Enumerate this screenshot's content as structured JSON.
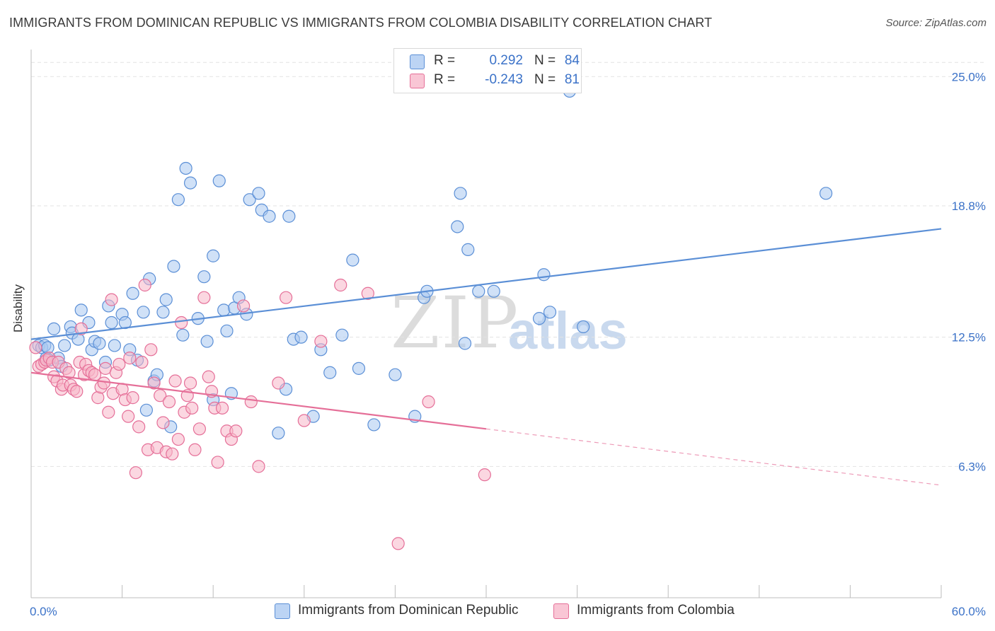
{
  "title": "IMMIGRANTS FROM DOMINICAN REPUBLIC VS IMMIGRANTS FROM COLOMBIA DISABILITY CORRELATION CHART",
  "source": "Source: ZipAtlas.com",
  "watermark": {
    "zip": "ZIP",
    "atlas": "atlas"
  },
  "legend": {
    "rows": [
      {
        "r_label": "R =",
        "r_value": "0.292",
        "n_label": "N =",
        "n_value": "84",
        "color": "#a9c8f0"
      },
      {
        "r_label": "R =",
        "r_value": "-0.243",
        "n_label": "N =",
        "n_value": "81",
        "color": "#f7b6c9"
      }
    ]
  },
  "bottom_legend": [
    {
      "label": "Immigrants from Dominican Republic",
      "color": "#a9c8f0"
    },
    {
      "label": "Immigrants from Colombia",
      "color": "#f7b6c9"
    }
  ],
  "chart_data": {
    "type": "scatter",
    "title": "IMMIGRANTS FROM DOMINICAN REPUBLIC VS IMMIGRANTS FROM COLOMBIA DISABILITY CORRELATION CHART",
    "xlabel": "",
    "ylabel": "Disability",
    "xlim": [
      0,
      60
    ],
    "ylim": [
      0,
      26.3
    ],
    "x_tick_labels": [
      "0.0%",
      "60.0%"
    ],
    "y_ticks": [
      6.3,
      12.5,
      18.8,
      25.0
    ],
    "y_tick_labels": [
      "6.3%",
      "12.5%",
      "18.8%",
      "25.0%"
    ],
    "grid": true,
    "series": [
      {
        "name": "Immigrants from Dominican Republic",
        "color": "#5b8fd6",
        "fill": "#a9c8f0",
        "trend": {
          "x": [
            0,
            60
          ],
          "y": [
            12.4,
            17.7
          ],
          "dashed_from": null
        },
        "points": [
          [
            0.5,
            12.1
          ],
          [
            0.7,
            12.0
          ],
          [
            0.9,
            12.1
          ],
          [
            1.0,
            11.5
          ],
          [
            1.1,
            12.0
          ],
          [
            1.2,
            11.4
          ],
          [
            1.5,
            12.9
          ],
          [
            1.8,
            11.5
          ],
          [
            2.0,
            11.1
          ],
          [
            2.2,
            12.1
          ],
          [
            2.6,
            13.0
          ],
          [
            2.7,
            12.7
          ],
          [
            3.1,
            12.4
          ],
          [
            3.3,
            13.8
          ],
          [
            3.8,
            13.2
          ],
          [
            4.0,
            11.9
          ],
          [
            4.2,
            12.3
          ],
          [
            4.5,
            12.2
          ],
          [
            4.9,
            11.3
          ],
          [
            5.1,
            14.0
          ],
          [
            5.3,
            13.2
          ],
          [
            5.5,
            12.1
          ],
          [
            6.0,
            13.6
          ],
          [
            6.2,
            13.2
          ],
          [
            6.5,
            11.9
          ],
          [
            6.7,
            14.6
          ],
          [
            7.0,
            11.4
          ],
          [
            7.4,
            13.7
          ],
          [
            7.6,
            9.0
          ],
          [
            7.8,
            15.3
          ],
          [
            8.1,
            10.4
          ],
          [
            8.3,
            10.7
          ],
          [
            8.7,
            13.7
          ],
          [
            8.9,
            14.3
          ],
          [
            9.2,
            8.2
          ],
          [
            9.4,
            15.9
          ],
          [
            9.7,
            19.1
          ],
          [
            10.0,
            12.6
          ],
          [
            10.2,
            20.6
          ],
          [
            10.5,
            19.9
          ],
          [
            11.0,
            13.4
          ],
          [
            11.4,
            15.4
          ],
          [
            11.6,
            12.3
          ],
          [
            12.0,
            16.4
          ],
          [
            12.0,
            9.5
          ],
          [
            12.4,
            20.0
          ],
          [
            12.7,
            13.8
          ],
          [
            12.9,
            12.8
          ],
          [
            13.2,
            9.8
          ],
          [
            13.4,
            13.9
          ],
          [
            13.7,
            14.4
          ],
          [
            14.2,
            13.6
          ],
          [
            14.4,
            19.1
          ],
          [
            15.0,
            19.4
          ],
          [
            15.2,
            18.6
          ],
          [
            15.7,
            18.3
          ],
          [
            16.3,
            7.9
          ],
          [
            16.8,
            10.0
          ],
          [
            17.0,
            18.3
          ],
          [
            17.3,
            12.4
          ],
          [
            17.8,
            12.5
          ],
          [
            18.6,
            8.7
          ],
          [
            19.1,
            11.9
          ],
          [
            19.7,
            10.8
          ],
          [
            20.5,
            12.6
          ],
          [
            21.2,
            16.2
          ],
          [
            21.6,
            11.0
          ],
          [
            22.6,
            8.3
          ],
          [
            24.0,
            10.7
          ],
          [
            25.3,
            8.7
          ],
          [
            25.9,
            14.4
          ],
          [
            26.1,
            14.7
          ],
          [
            28.1,
            17.8
          ],
          [
            28.3,
            19.4
          ],
          [
            28.6,
            12.2
          ],
          [
            28.8,
            16.7
          ],
          [
            29.5,
            14.7
          ],
          [
            30.5,
            14.7
          ],
          [
            33.5,
            13.4
          ],
          [
            33.8,
            15.5
          ],
          [
            34.2,
            13.7
          ],
          [
            35.5,
            24.3
          ],
          [
            36.4,
            13.0
          ],
          [
            52.4,
            19.4
          ]
        ]
      },
      {
        "name": "Immigrants from Colombia",
        "color": "#e56f98",
        "fill": "#f7b6c9",
        "trend": {
          "x": [
            0,
            60
          ],
          "y": [
            10.8,
            5.4
          ],
          "dashed_from": 30
        },
        "points": [
          [
            0.3,
            12.0
          ],
          [
            0.5,
            11.1
          ],
          [
            0.7,
            11.2
          ],
          [
            0.9,
            11.3
          ],
          [
            1.0,
            11.4
          ],
          [
            1.2,
            11.5
          ],
          [
            1.4,
            11.3
          ],
          [
            1.5,
            10.6
          ],
          [
            1.7,
            10.4
          ],
          [
            1.8,
            11.3
          ],
          [
            2.0,
            10.0
          ],
          [
            2.1,
            10.2
          ],
          [
            2.3,
            11.0
          ],
          [
            2.5,
            10.8
          ],
          [
            2.6,
            10.2
          ],
          [
            2.8,
            10.0
          ],
          [
            3.0,
            9.9
          ],
          [
            3.2,
            11.3
          ],
          [
            3.3,
            12.9
          ],
          [
            3.5,
            10.7
          ],
          [
            3.6,
            11.2
          ],
          [
            3.8,
            10.9
          ],
          [
            4.0,
            10.8
          ],
          [
            4.2,
            10.7
          ],
          [
            4.4,
            9.6
          ],
          [
            4.6,
            10.1
          ],
          [
            4.8,
            10.3
          ],
          [
            4.9,
            11.0
          ],
          [
            5.1,
            8.9
          ],
          [
            5.3,
            14.3
          ],
          [
            5.4,
            9.8
          ],
          [
            5.6,
            10.8
          ],
          [
            5.8,
            11.2
          ],
          [
            6.0,
            10.0
          ],
          [
            6.2,
            9.5
          ],
          [
            6.4,
            8.7
          ],
          [
            6.5,
            11.5
          ],
          [
            6.7,
            9.6
          ],
          [
            6.9,
            6.0
          ],
          [
            7.1,
            8.2
          ],
          [
            7.3,
            11.3
          ],
          [
            7.5,
            15.0
          ],
          [
            7.7,
            7.1
          ],
          [
            7.9,
            11.9
          ],
          [
            8.1,
            10.3
          ],
          [
            8.3,
            7.2
          ],
          [
            8.5,
            9.7
          ],
          [
            8.7,
            8.4
          ],
          [
            8.9,
            7.0
          ],
          [
            9.1,
            9.4
          ],
          [
            9.3,
            6.9
          ],
          [
            9.5,
            10.4
          ],
          [
            9.7,
            7.6
          ],
          [
            9.9,
            13.2
          ],
          [
            10.1,
            8.9
          ],
          [
            10.3,
            9.7
          ],
          [
            10.5,
            10.3
          ],
          [
            10.6,
            9.1
          ],
          [
            10.8,
            7.1
          ],
          [
            11.1,
            8.1
          ],
          [
            11.4,
            14.4
          ],
          [
            11.7,
            10.6
          ],
          [
            11.9,
            9.9
          ],
          [
            12.1,
            9.1
          ],
          [
            12.3,
            6.5
          ],
          [
            12.6,
            9.1
          ],
          [
            12.9,
            8.0
          ],
          [
            13.2,
            7.6
          ],
          [
            13.5,
            8.0
          ],
          [
            14.0,
            14.0
          ],
          [
            14.5,
            9.4
          ],
          [
            15.0,
            6.3
          ],
          [
            16.3,
            10.3
          ],
          [
            16.8,
            14.4
          ],
          [
            18.0,
            8.5
          ],
          [
            19.1,
            12.3
          ],
          [
            20.4,
            15.0
          ],
          [
            22.2,
            14.6
          ],
          [
            24.2,
            2.6
          ],
          [
            26.2,
            9.4
          ],
          [
            29.9,
            5.9
          ]
        ]
      }
    ]
  }
}
